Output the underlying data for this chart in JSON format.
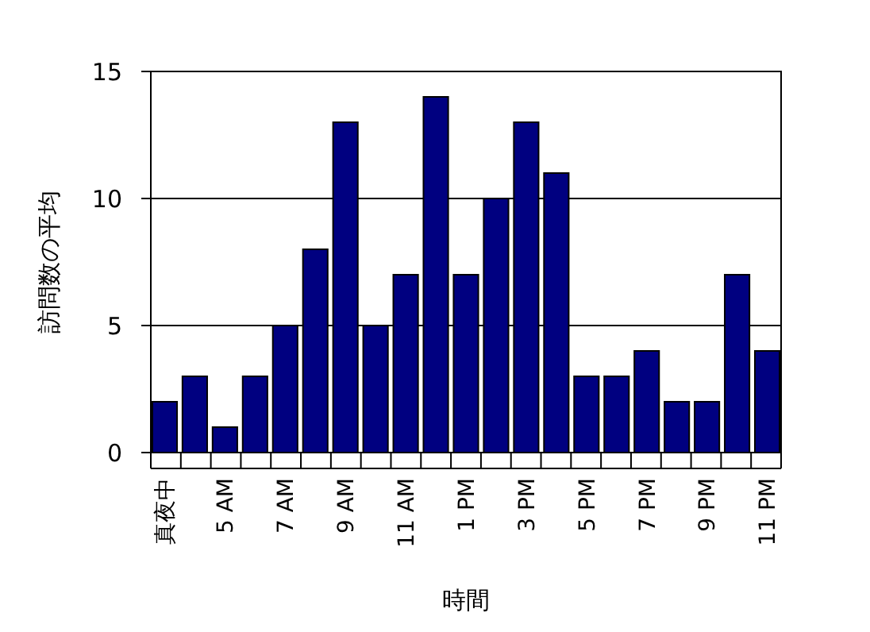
{
  "chart_data": {
    "type": "bar",
    "xlabel": "時間",
    "ylabel": "訪問数の平均",
    "categories": [
      "真夜中",
      null,
      "5 AM",
      null,
      "7 AM",
      null,
      "9 AM",
      null,
      "11 AM",
      null,
      "1 PM",
      null,
      "3 PM",
      null,
      "5 PM",
      null,
      "7 PM",
      null,
      "9 PM",
      null,
      "11 PM"
    ],
    "values": [
      2,
      3,
      1,
      3,
      5,
      8,
      13,
      5,
      7,
      14,
      7,
      10,
      13,
      11,
      3,
      3,
      4,
      2,
      2,
      7,
      4
    ],
    "color": "#000080",
    "ylim": [
      0,
      15
    ],
    "yticks": [
      0,
      5,
      10,
      15
    ],
    "grid": "y"
  }
}
